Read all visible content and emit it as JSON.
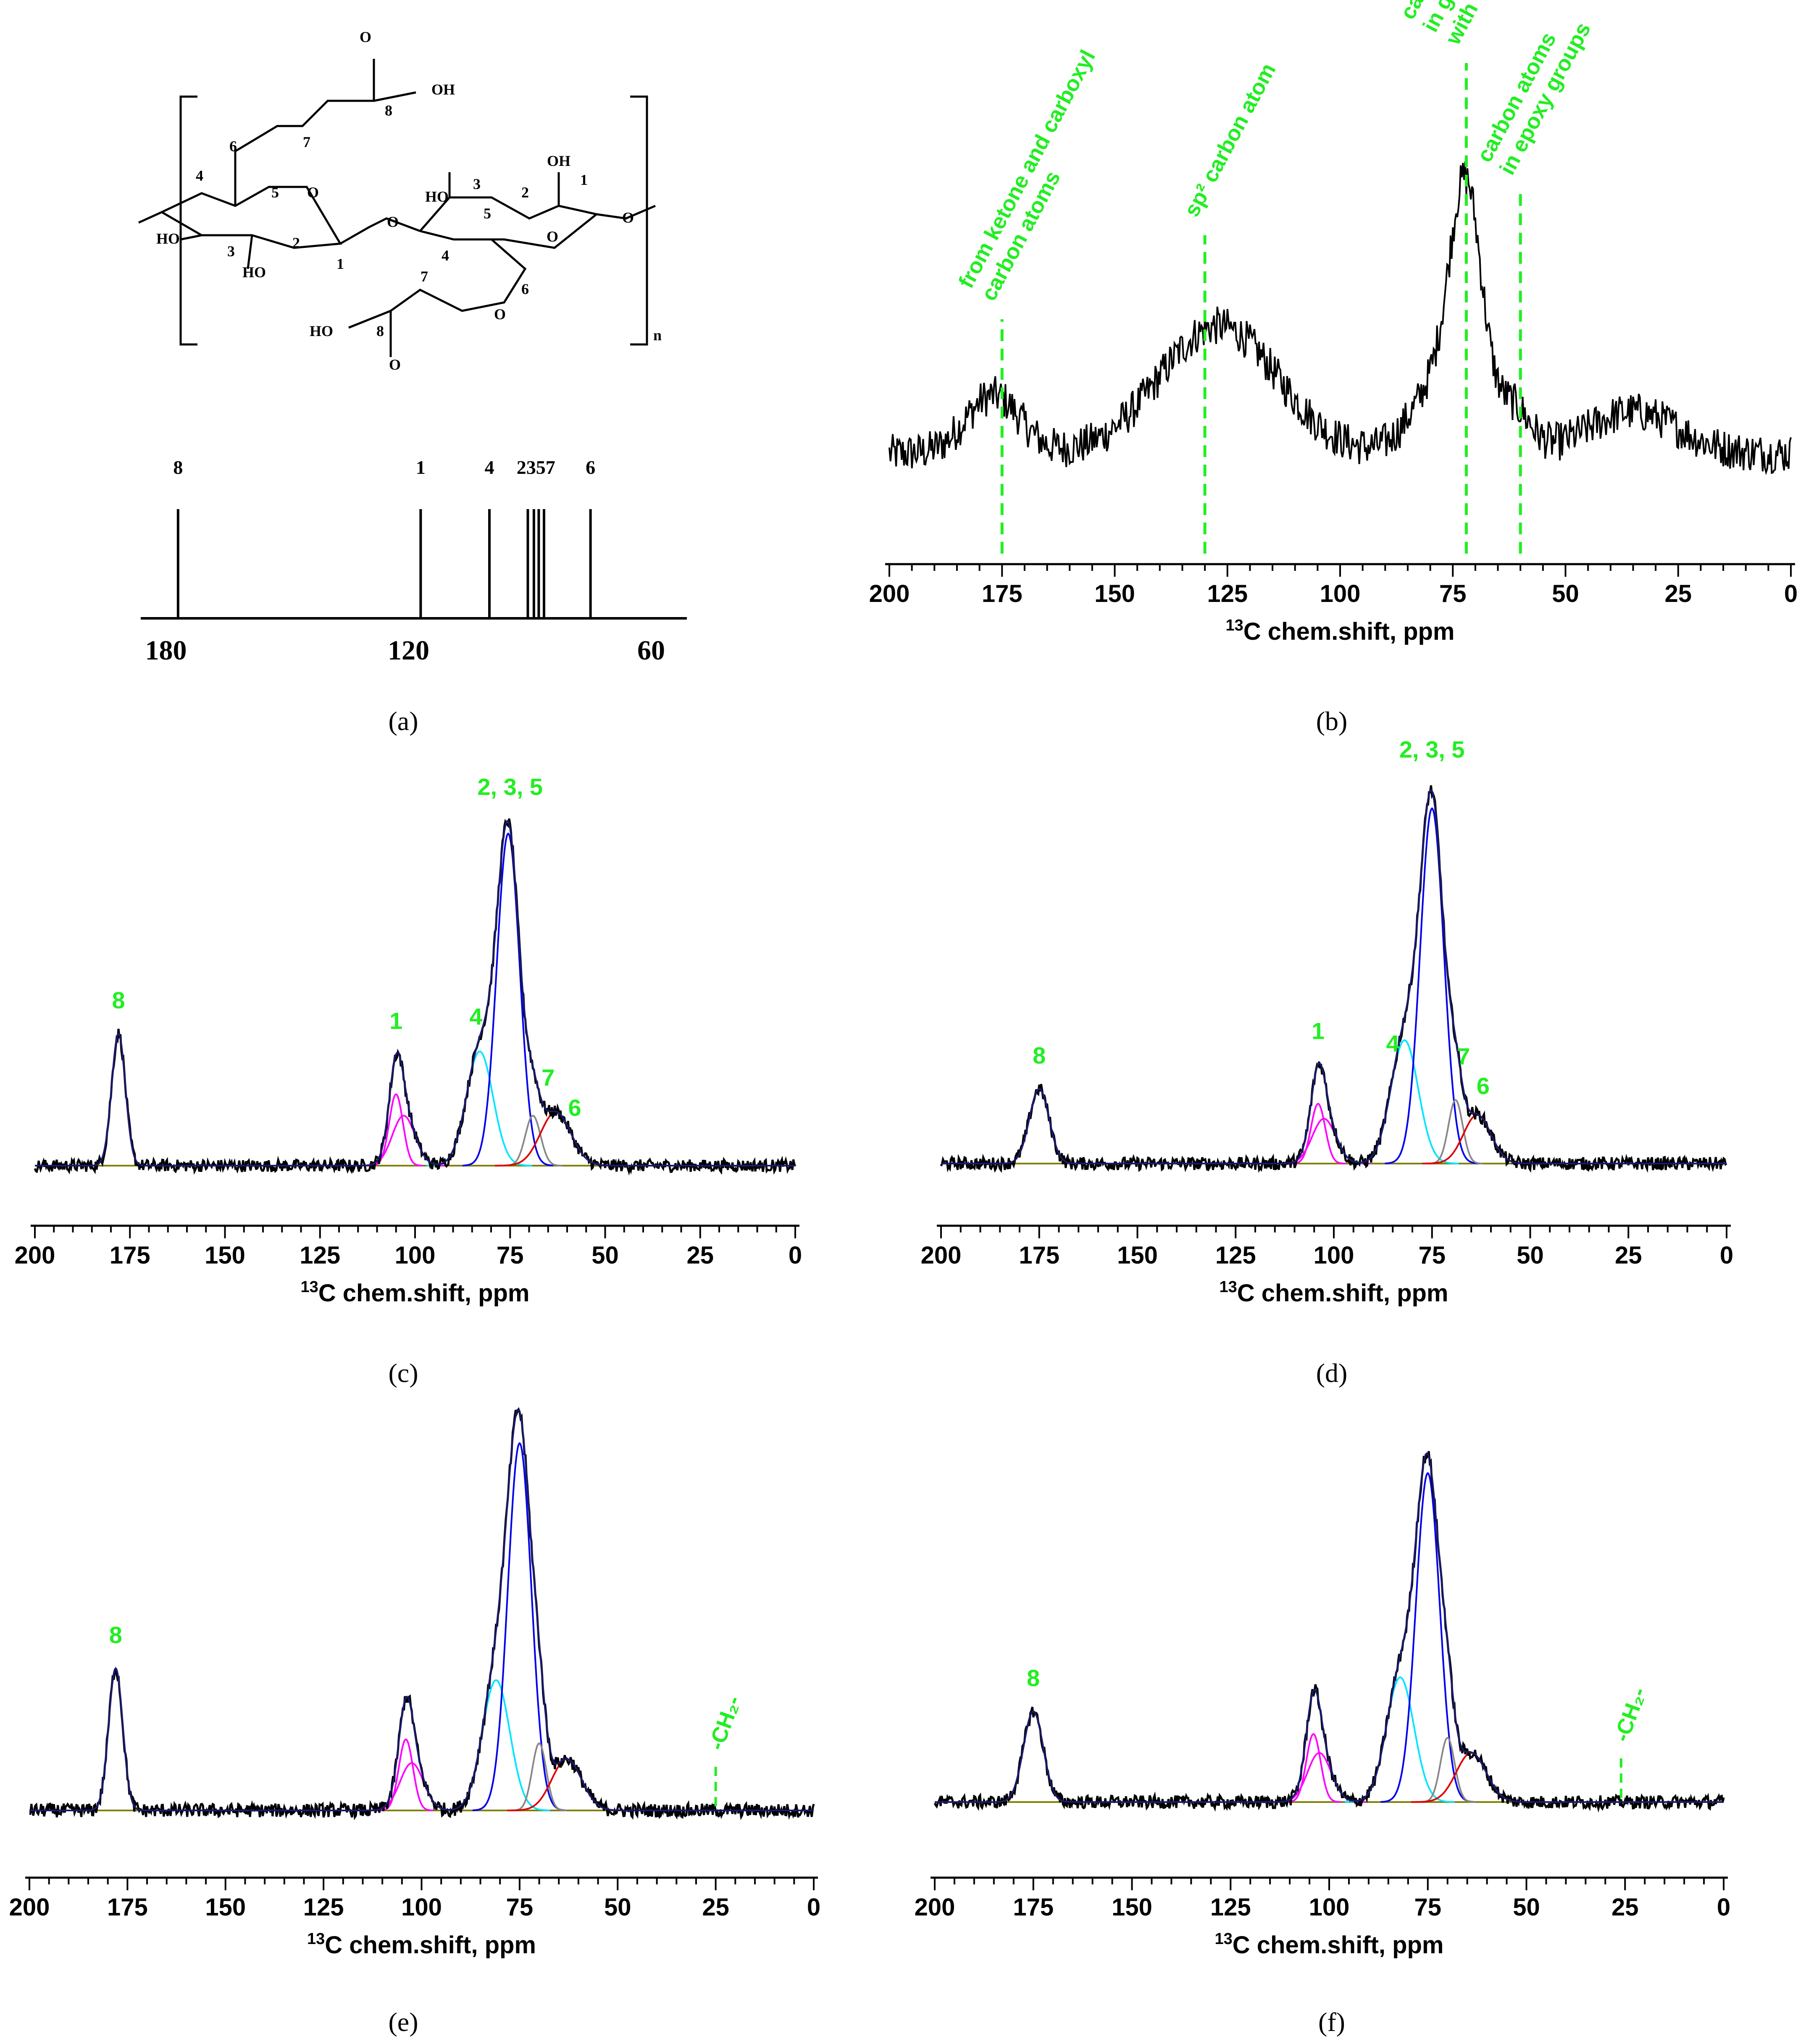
{
  "panel_labels": [
    "(a)",
    "(b)",
    "(c)",
    "(d)",
    "(e)",
    "(f)"
  ],
  "panel_a": {
    "bracket_subscript": "n",
    "stick_spectrum": {
      "axis_ticks": [
        "180",
        "120",
        "60"
      ],
      "axis_range": [
        180,
        60
      ],
      "lines": [
        {
          "label": "8",
          "ppm": 177
        },
        {
          "label": "1",
          "ppm": 117
        },
        {
          "label": "4",
          "ppm": 100
        },
        {
          "label": "2",
          "ppm": 90.5
        },
        {
          "label": "3",
          "ppm": 89
        },
        {
          "label": "5",
          "ppm": 87.8
        },
        {
          "label": "7",
          "ppm": 86.5
        },
        {
          "label": "6",
          "ppm": 75
        }
      ],
      "top_labels": [
        "8",
        "1",
        "4",
        "2357",
        "6"
      ]
    },
    "structure": {
      "atom_labels": [
        "O",
        "OH",
        "8",
        "7",
        "6",
        "5",
        "4",
        "3",
        "2",
        "1",
        "O",
        "O",
        "HO",
        "HO",
        "3",
        "2",
        "OH",
        "1",
        "O",
        "O",
        "4",
        "5",
        "6",
        "7",
        "O",
        "8",
        "HO",
        "O",
        "HO"
      ]
    }
  },
  "chart_data": [
    {
      "id": "b",
      "type": "line",
      "xlabel_sup": "13",
      "xlabel": "C chem.shift, ppm",
      "xlim": [
        200,
        0
      ],
      "xticks": [
        "200",
        "175",
        "150",
        "125",
        "100",
        "75",
        "50",
        "25",
        "0"
      ],
      "annotations": [
        {
          "ppm": 175,
          "lines": [
            "from ketone and carboxyl",
            "carbon atoms"
          ]
        },
        {
          "ppm": 130,
          "lines": [
            "sp² carbon atom"
          ]
        },
        {
          "ppm": 72,
          "lines": [
            "carbon atoms",
            "in graphene",
            "with -OH"
          ]
        },
        {
          "ppm": 60,
          "lines": [
            "carbon atoms",
            "in epoxy groups"
          ]
        }
      ],
      "broad_components": [
        {
          "center": 177,
          "width": 6,
          "amp": 0.25
        },
        {
          "center": 127,
          "width": 13,
          "amp": 0.55
        },
        {
          "center": 72,
          "width": 3.5,
          "amp": 1.0
        },
        {
          "center": 78,
          "width": 6,
          "amp": 0.3
        },
        {
          "center": 62,
          "width": 4,
          "amp": 0.2
        },
        {
          "center": 35,
          "width": 10,
          "amp": 0.18
        }
      ]
    },
    {
      "id": "c",
      "type": "line",
      "xlabel_sup": "13",
      "xlabel": "C chem.shift, ppm",
      "xlim": [
        200,
        0
      ],
      "xticks": [
        "200",
        "175",
        "150",
        "125",
        "100",
        "75",
        "50",
        "25",
        "0"
      ],
      "peak_labels": [
        {
          "text": "8",
          "ppm": 178
        },
        {
          "text": "1",
          "ppm": 105
        },
        {
          "text": "4",
          "ppm": 84
        },
        {
          "text": "2, 3, 5",
          "ppm": 75
        },
        {
          "text": "7",
          "ppm": 65
        },
        {
          "text": "6",
          "ppm": 58
        }
      ],
      "components": [
        {
          "name": "C8",
          "center": 178,
          "width": 1.8,
          "amp": 0.37,
          "color": "#ff00ff"
        },
        {
          "name": "C1a",
          "center": 105,
          "width": 1.8,
          "amp": 0.2,
          "color": "#ff00ff"
        },
        {
          "name": "C1b",
          "center": 103,
          "width": 3.0,
          "amp": 0.14,
          "color": "#ff00ff"
        },
        {
          "name": "C4",
          "center": 83,
          "width": 3.5,
          "amp": 0.32,
          "color": "#00e5ff"
        },
        {
          "name": "C235",
          "center": 75.5,
          "width": 3.0,
          "amp": 0.93,
          "color": "#0000ee"
        },
        {
          "name": "C7",
          "center": 69,
          "width": 2.0,
          "amp": 0.14,
          "color": "#888888"
        },
        {
          "name": "C6",
          "center": 63,
          "width": 4.0,
          "amp": 0.15,
          "color": "#dd0000"
        }
      ]
    },
    {
      "id": "d",
      "type": "line",
      "xlabel_sup": "13",
      "xlabel": "C chem.shift, ppm",
      "xlim": [
        200,
        0
      ],
      "xticks": [
        "200",
        "175",
        "150",
        "125",
        "100",
        "75",
        "50",
        "25",
        "0"
      ],
      "peak_labels": [
        {
          "text": "8",
          "ppm": 175
        },
        {
          "text": "1",
          "ppm": 104
        },
        {
          "text": "4",
          "ppm": 85
        },
        {
          "text": "2, 3, 5",
          "ppm": 75
        },
        {
          "text": "7",
          "ppm": 67
        },
        {
          "text": "6",
          "ppm": 62
        }
      ],
      "components": [
        {
          "name": "C8",
          "center": 175,
          "width": 2.5,
          "amp": 0.2,
          "color": "#ff00ff"
        },
        {
          "name": "C1a",
          "center": 104,
          "width": 1.8,
          "amp": 0.16,
          "color": "#ff00ff"
        },
        {
          "name": "C1b",
          "center": 102.5,
          "width": 3.0,
          "amp": 0.12,
          "color": "#ff00ff"
        },
        {
          "name": "C4",
          "center": 82,
          "width": 3.5,
          "amp": 0.33,
          "color": "#00e5ff"
        },
        {
          "name": "C235",
          "center": 75,
          "width": 3.0,
          "amp": 0.95,
          "color": "#0000ee"
        },
        {
          "name": "C7",
          "center": 69,
          "width": 1.8,
          "amp": 0.17,
          "color": "#888888"
        },
        {
          "name": "C6",
          "center": 63.5,
          "width": 3.5,
          "amp": 0.13,
          "color": "#dd0000"
        }
      ]
    },
    {
      "id": "e",
      "type": "line",
      "xlabel_sup": "13",
      "xlabel": "C chem.shift, ppm",
      "xlim": [
        200,
        0
      ],
      "xticks": [
        "200",
        "175",
        "150",
        "125",
        "100",
        "75",
        "50",
        "25",
        "0"
      ],
      "peak_labels": [
        {
          "text": "8",
          "ppm": 178
        }
      ],
      "marker": {
        "text": "-CH₂-",
        "ppm": 25
      },
      "components": [
        {
          "name": "C8",
          "center": 178,
          "width": 1.8,
          "amp": 0.36,
          "color": "#ff00ff"
        },
        {
          "name": "C1a",
          "center": 104,
          "width": 1.8,
          "amp": 0.18,
          "color": "#ff00ff"
        },
        {
          "name": "C1b",
          "center": 102.5,
          "width": 3.0,
          "amp": 0.12,
          "color": "#ff00ff"
        },
        {
          "name": "C4",
          "center": 81,
          "width": 3.5,
          "amp": 0.33,
          "color": "#00e5ff"
        },
        {
          "name": "C235",
          "center": 75,
          "width": 3.0,
          "amp": 0.93,
          "color": "#0000ee"
        },
        {
          "name": "C7",
          "center": 70,
          "width": 1.8,
          "amp": 0.17,
          "color": "#888888"
        },
        {
          "name": "C6",
          "center": 63,
          "width": 3.8,
          "amp": 0.13,
          "color": "#dd0000"
        }
      ]
    },
    {
      "id": "f",
      "type": "line",
      "xlabel_sup": "13",
      "xlabel": "C chem.shift, ppm",
      "xlim": [
        200,
        0
      ],
      "xticks": [
        "200",
        "175",
        "150",
        "125",
        "100",
        "75",
        "50",
        "25",
        "0"
      ],
      "peak_labels": [
        {
          "text": "8",
          "ppm": 175
        }
      ],
      "marker": {
        "text": "-CH₂-",
        "ppm": 26
      },
      "components": [
        {
          "name": "C8",
          "center": 175,
          "width": 2.5,
          "amp": 0.24,
          "color": "#ff00ff"
        },
        {
          "name": "C1a",
          "center": 104,
          "width": 1.8,
          "amp": 0.18,
          "color": "#ff00ff"
        },
        {
          "name": "C1b",
          "center": 102.5,
          "width": 3.0,
          "amp": 0.13,
          "color": "#ff00ff"
        },
        {
          "name": "C4",
          "center": 82,
          "width": 3.5,
          "amp": 0.33,
          "color": "#00e5ff"
        },
        {
          "name": "C235",
          "center": 75,
          "width": 3.0,
          "amp": 0.87,
          "color": "#0000ee"
        },
        {
          "name": "C7",
          "center": 70,
          "width": 1.8,
          "amp": 0.17,
          "color": "#888888"
        },
        {
          "name": "C6",
          "center": 64,
          "width": 3.8,
          "amp": 0.13,
          "color": "#dd0000"
        }
      ]
    }
  ]
}
